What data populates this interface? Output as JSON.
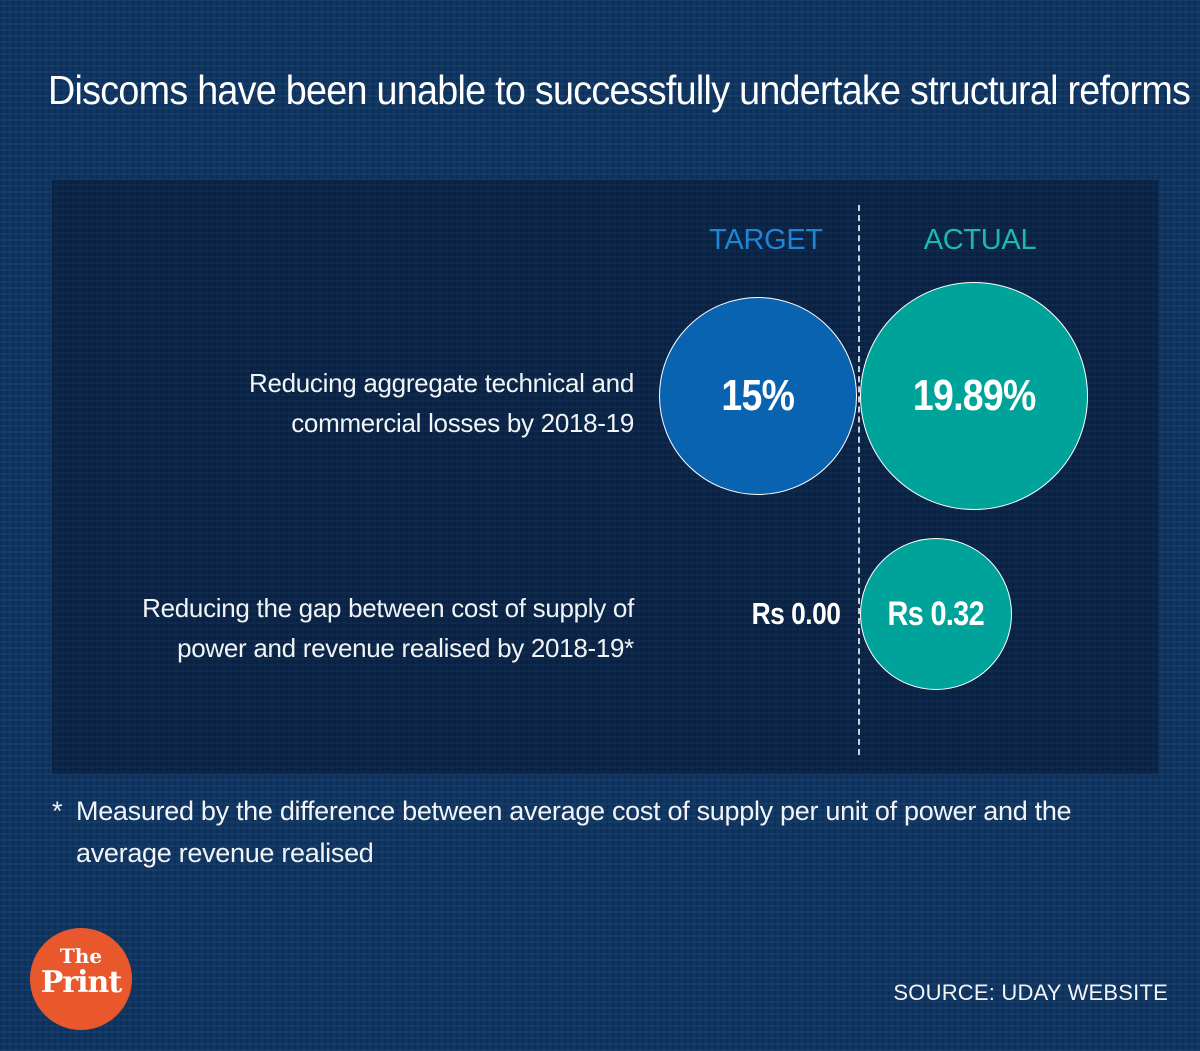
{
  "title": "Discoms have been unable to successfully undertake structural reforms",
  "columns": {
    "target": "TARGET",
    "actual": "ACTUAL"
  },
  "chart_data": {
    "type": "bubble",
    "title": "Discoms have been unable to successfully undertake structural reforms",
    "series": [
      {
        "name": "TARGET",
        "color": "#0a63b0"
      },
      {
        "name": "ACTUAL",
        "color": "#00a39a"
      }
    ],
    "rows": [
      {
        "label_line1": "Reducing aggregate technical and",
        "label_line2": "commercial losses by 2018-19",
        "target": {
          "value": 15,
          "display": "15%"
        },
        "actual": {
          "value": 19.89,
          "display": "19.89%"
        }
      },
      {
        "label_line1": "Reducing the gap between cost of supply of",
        "label_line2": "power and revenue realised by 2018-19*",
        "target": {
          "value": 0.0,
          "display": "Rs 0.00"
        },
        "actual": {
          "value": 0.32,
          "display": "Rs 0.32"
        }
      }
    ]
  },
  "footnote": {
    "star": "*",
    "line1": "Measured by the difference between average cost of supply per unit of power and the",
    "line2": "average revenue realised"
  },
  "source": "SOURCE: UDAY WEBSITE",
  "logo": {
    "line1": "The",
    "line2": "Print",
    "color": "#e8582c"
  }
}
